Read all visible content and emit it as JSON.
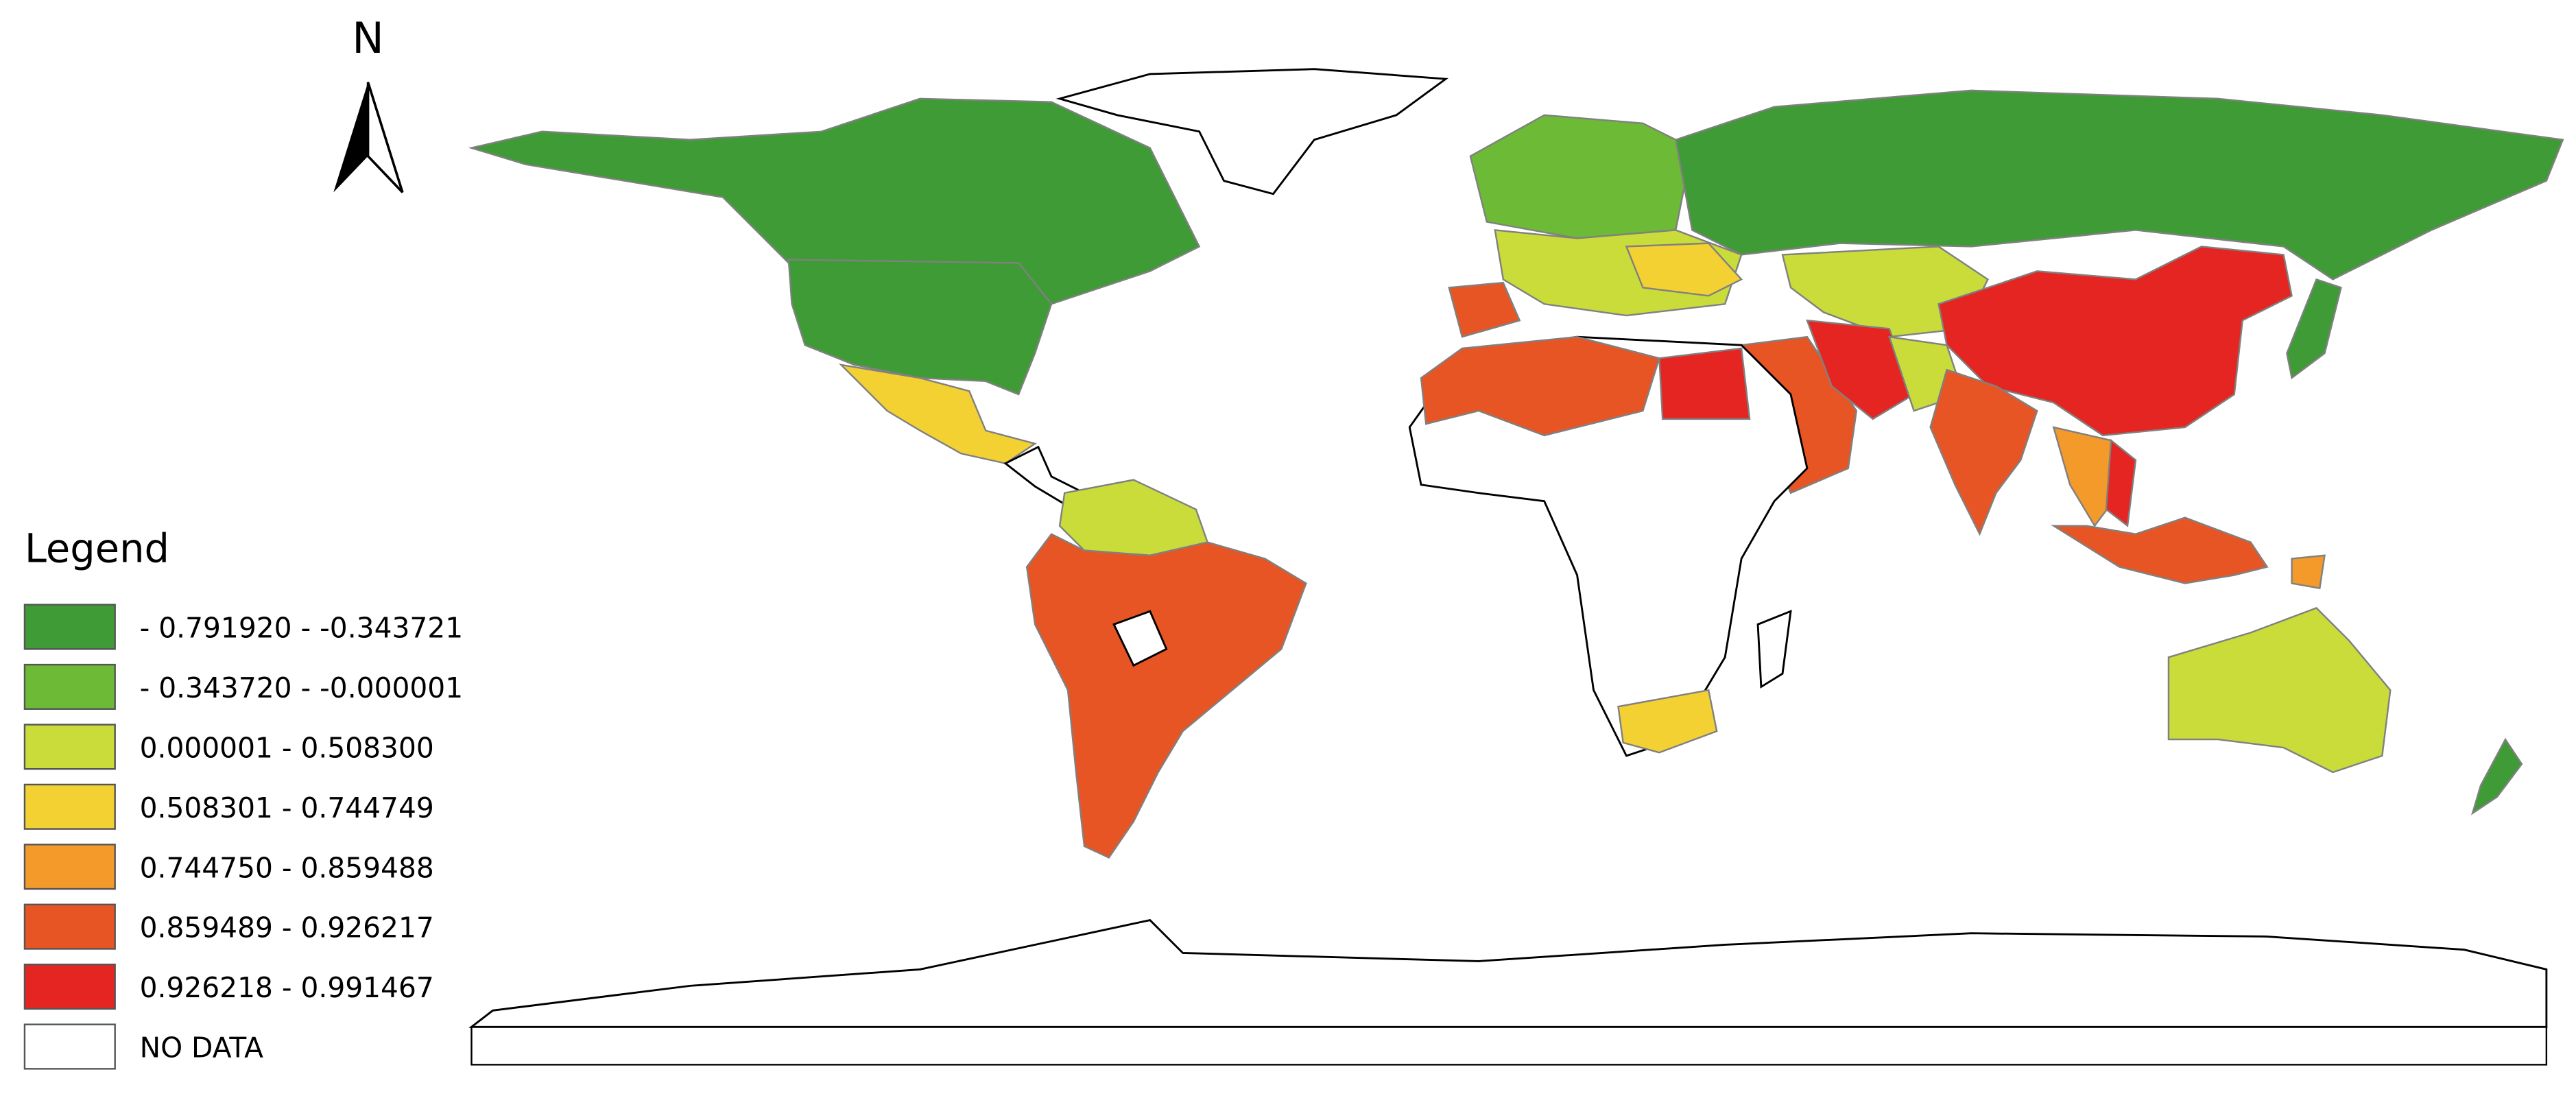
{
  "north_label": "N",
  "legend": {
    "title": "Legend",
    "items": [
      {
        "label": "- 0.791920 - -0.343721",
        "color": "#3f9b35"
      },
      {
        "label": "- 0.343720 - -0.000001",
        "color": "#6cba35"
      },
      {
        "label": "0.000001 - 0.508300",
        "color": "#c9dc3a"
      },
      {
        "label": "0.508301 - 0.744749",
        "color": "#f3d133"
      },
      {
        "label": "0.744750 - 0.859488",
        "color": "#f39a2a"
      },
      {
        "label": "0.859489 - 0.926217",
        "color": "#e85524"
      },
      {
        "label": "0.926218 - 0.991467",
        "color": "#e52521"
      },
      {
        "label": "NO DATA",
        "color": "#ffffff"
      }
    ]
  }
}
